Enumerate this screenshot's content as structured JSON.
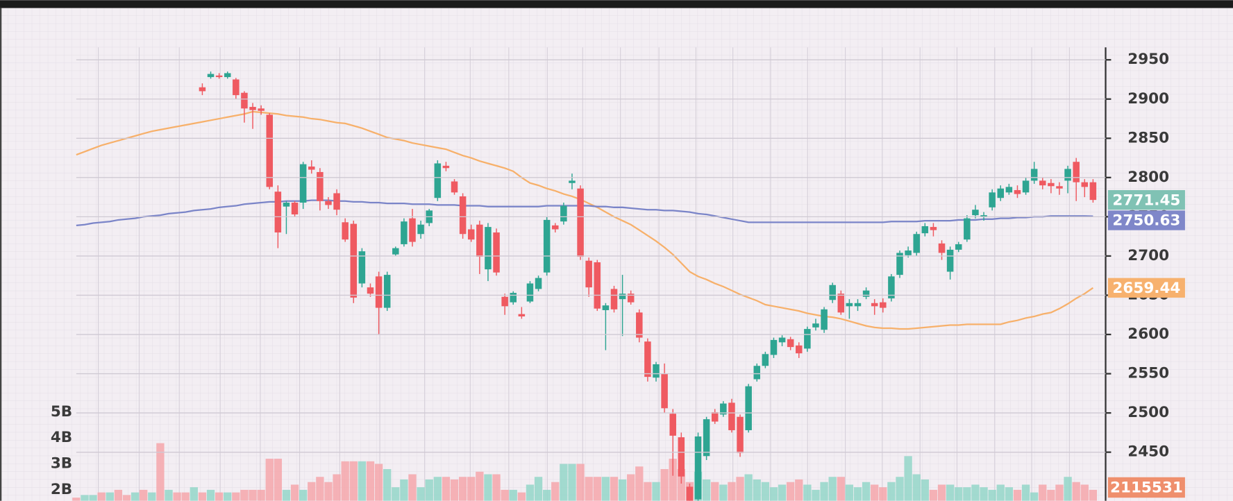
{
  "chart_data": {
    "type": "candlestick",
    "up_color": "#2ea592",
    "down_color": "#ef5a61",
    "ylim": [
      2388,
      3016
    ],
    "yticks": [
      2450,
      2500,
      2550,
      2600,
      2650,
      2700,
      2750,
      2800,
      2850,
      2900,
      2950
    ],
    "grid": true,
    "open": [
      null,
      null,
      null,
      null,
      null,
      null,
      null,
      null,
      null,
      null,
      null,
      null,
      null,
      null,
      null,
      2915,
      2928,
      2930,
      2928,
      2925,
      2908,
      2890,
      2888,
      2880,
      2782,
      2763,
      2768,
      2768,
      2814,
      2807,
      2770,
      2780,
      2743,
      2741,
      2665,
      2660,
      2674,
      2634,
      2702,
      2715,
      2748,
      2728,
      2742,
      2774,
      2815,
      2795,
      2776,
      2734,
      2740,
      2683,
      2730,
      2648,
      2641,
      2626,
      2642,
      2658,
      2679,
      2739,
      2744,
      2793,
      2786,
      2694,
      2692,
      2631,
      2658,
      2645,
      2652,
      2628,
      2591,
      2545,
      2550,
      2499,
      2469,
      2406,
      2390,
      2445,
      2501,
      2498,
      2513,
      2495,
      2478,
      2543,
      2560,
      2574,
      2590,
      2594,
      2586,
      2582,
      2609,
      2606,
      2644,
      2652,
      2636,
      2636,
      2648,
      2640,
      2641,
      2646,
      2676,
      2701,
      2704,
      2729,
      2737,
      2716,
      2680,
      2708,
      2721,
      2752,
      2750,
      2762,
      2774,
      2781,
      2784,
      2781,
      2796,
      2796,
      2793,
      2789,
      2796,
      2820,
      2794,
      2794
    ],
    "high": [
      null,
      null,
      null,
      null,
      null,
      null,
      null,
      null,
      null,
      null,
      null,
      null,
      null,
      null,
      null,
      2920,
      2935,
      2933,
      2935,
      2927,
      2910,
      2895,
      2892,
      2882,
      2790,
      2770,
      2770,
      2820,
      2822,
      2812,
      2775,
      2785,
      2748,
      2745,
      2710,
      2665,
      2680,
      2680,
      2712,
      2748,
      2760,
      2745,
      2760,
      2822,
      2820,
      2798,
      2780,
      2740,
      2745,
      2742,
      2735,
      2652,
      2655,
      2635,
      2668,
      2675,
      2750,
      2742,
      2768,
      2805,
      2790,
      2698,
      2695,
      2640,
      2662,
      2676,
      2656,
      2632,
      2595,
      2565,
      2563,
      2505,
      2475,
      2410,
      2475,
      2495,
      2505,
      2515,
      2518,
      2498,
      2537,
      2563,
      2578,
      2596,
      2599,
      2597,
      2590,
      2610,
      2620,
      2635,
      2666,
      2656,
      2645,
      2645,
      2660,
      2645,
      2646,
      2677,
      2707,
      2712,
      2731,
      2742,
      2742,
      2720,
      2712,
      2718,
      2752,
      2765,
      2756,
      2785,
      2790,
      2792,
      2790,
      2800,
      2820,
      2800,
      2798,
      2794,
      2815,
      2825,
      2798,
      2798
    ],
    "low": [
      null,
      null,
      null,
      null,
      null,
      null,
      null,
      null,
      null,
      null,
      null,
      null,
      null,
      null,
      null,
      2905,
      2926,
      2926,
      2926,
      2900,
      2870,
      2862,
      2880,
      2785,
      2710,
      2728,
      2750,
      2760,
      2805,
      2758,
      2760,
      2752,
      2718,
      2640,
      2660,
      2648,
      2600,
      2630,
      2700,
      2712,
      2712,
      2722,
      2738,
      2770,
      2808,
      2778,
      2722,
      2718,
      2677,
      2668,
      2675,
      2625,
      2638,
      2620,
      2640,
      2655,
      2675,
      2730,
      2740,
      2785,
      2695,
      2648,
      2630,
      2580,
      2628,
      2598,
      2638,
      2590,
      2540,
      2540,
      2500,
      2420,
      2410,
      2388,
      2388,
      2440,
      2486,
      2495,
      2475,
      2444,
      2475,
      2540,
      2557,
      2570,
      2585,
      2580,
      2570,
      2578,
      2605,
      2602,
      2640,
      2625,
      2620,
      2630,
      2645,
      2625,
      2628,
      2642,
      2672,
      2698,
      2700,
      2725,
      2725,
      2695,
      2670,
      2705,
      2718,
      2748,
      2745,
      2758,
      2770,
      2778,
      2774,
      2778,
      2792,
      2785,
      2780,
      2778,
      2780,
      2770,
      2775,
      2768
    ],
    "close": [
      null,
      null,
      null,
      null,
      null,
      null,
      null,
      null,
      null,
      null,
      null,
      null,
      null,
      null,
      null,
      2910,
      2932,
      2928,
      2933,
      2905,
      2888,
      2886,
      2885,
      2788,
      2730,
      2768,
      2753,
      2817,
      2810,
      2770,
      2765,
      2759,
      2721,
      2647,
      2706,
      2652,
      2634,
      2676,
      2710,
      2744,
      2718,
      2740,
      2758,
      2818,
      2812,
      2781,
      2728,
      2721,
      2699,
      2737,
      2679,
      2636,
      2653,
      2623,
      2665,
      2672,
      2746,
      2734,
      2764,
      2796,
      2699,
      2660,
      2633,
      2637,
      2632,
      2652,
      2641,
      2596,
      2546,
      2562,
      2506,
      2471,
      2419,
      2388,
      2470,
      2492,
      2489,
      2512,
      2478,
      2449,
      2534,
      2560,
      2575,
      2593,
      2596,
      2584,
      2576,
      2607,
      2614,
      2632,
      2663,
      2628,
      2640,
      2640,
      2656,
      2636,
      2634,
      2674,
      2704,
      2707,
      2728,
      2738,
      2733,
      2704,
      2708,
      2715,
      2748,
      2759,
      2752,
      2781,
      2786,
      2788,
      2779,
      2796,
      2811,
      2790,
      2789,
      2786,
      2811,
      2794,
      2788,
      2771.45
    ],
    "lines": [
      {
        "color": "#f7b06a",
        "values": [
          2829,
          2833,
          2837,
          2841,
          2844,
          2847,
          2850,
          2853,
          2856,
          2859,
          2861,
          2863,
          2865,
          2867,
          2869,
          2871,
          2873,
          2875,
          2877,
          2879,
          2881,
          2884,
          2883,
          2882,
          2881,
          2879,
          2878,
          2877,
          2875,
          2874,
          2872,
          2870,
          2869,
          2866,
          2863,
          2859,
          2855,
          2851,
          2849,
          2847,
          2844,
          2842,
          2840,
          2838,
          2836,
          2832,
          2828,
          2825,
          2821,
          2818,
          2815,
          2812,
          2808,
          2800,
          2793,
          2790,
          2786,
          2783,
          2779,
          2776,
          2772,
          2767,
          2762,
          2756,
          2750,
          2745,
          2740,
          2733,
          2726,
          2719,
          2711,
          2702,
          2691,
          2680,
          2674,
          2670,
          2665,
          2661,
          2656,
          2651,
          2647,
          2643,
          2638,
          2636,
          2634,
          2632,
          2630,
          2627,
          2625,
          2623,
          2622,
          2620,
          2617,
          2614,
          2611,
          2609,
          2608,
          2608,
          2607,
          2607,
          2608,
          2609,
          2610,
          2611,
          2612,
          2612,
          2613,
          2613,
          2613,
          2613,
          2613,
          2616,
          2618,
          2621,
          2623,
          2626,
          2628,
          2633,
          2639,
          2646,
          2652,
          2659.44
        ]
      },
      {
        "color": "#7a84c8",
        "values": [
          2739,
          2740,
          2742,
          2743,
          2744,
          2746,
          2747,
          2748,
          2750,
          2751,
          2752,
          2754,
          2755,
          2756,
          2758,
          2759,
          2760,
          2762,
          2763,
          2764,
          2766,
          2767,
          2768,
          2769,
          2769,
          2770,
          2770,
          2770,
          2771,
          2771,
          2771,
          2770,
          2770,
          2769,
          2769,
          2768,
          2768,
          2767,
          2767,
          2767,
          2766,
          2766,
          2766,
          2765,
          2765,
          2765,
          2764,
          2764,
          2764,
          2763,
          2763,
          2763,
          2763,
          2763,
          2763,
          2763,
          2764,
          2764,
          2764,
          2764,
          2764,
          2764,
          2763,
          2763,
          2762,
          2762,
          2761,
          2760,
          2759,
          2759,
          2758,
          2758,
          2757,
          2756,
          2754,
          2753,
          2751,
          2749,
          2747,
          2745,
          2743,
          2743,
          2743,
          2743,
          2743,
          2743,
          2743,
          2743,
          2743,
          2743,
          2743,
          2743,
          2743,
          2743,
          2743,
          2743,
          2743,
          2744,
          2744,
          2744,
          2744,
          2745,
          2745,
          2745,
          2745,
          2746,
          2746,
          2746,
          2747,
          2747,
          2748,
          2748,
          2749,
          2749,
          2750,
          2750,
          2751,
          2751,
          2751,
          2751,
          2751,
          2750.63
        ]
      }
    ],
    "volume": {
      "ylim": [
        1576000000,
        20580000000
      ],
      "yticks": [
        {
          "value": 2000000000,
          "label": "2B"
        },
        {
          "value": 3000000000,
          "label": "3B"
        },
        {
          "value": 4000000000,
          "label": "4B"
        },
        {
          "value": 5000000000,
          "label": "5B"
        }
      ],
      "values": [
        1700000000.0,
        1800000000.0,
        1800000000.0,
        1900000000.0,
        1900000000.0,
        2000000000.0,
        1800000000.0,
        1900000000.0,
        2000000000.0,
        1900000000.0,
        3800000000.0,
        2000000000.0,
        1900000000.0,
        1900000000.0,
        2100000000.0,
        1900000000.0,
        2000000000.0,
        1900000000.0,
        1900000000.0,
        1900000000.0,
        2000000000.0,
        2000000000.0,
        2000000000.0,
        3200000000.0,
        3200000000.0,
        2000000000.0,
        2200000000.0,
        2000000000.0,
        2300000000.0,
        2500000000.0,
        2300000000.0,
        2600000000.0,
        3100000000.0,
        3100000000.0,
        3100000000.0,
        3100000000.0,
        3000000000.0,
        2800000000.0,
        2100000000.0,
        2400000000.0,
        2600000000.0,
        2100000000.0,
        2400000000.0,
        2500000000.0,
        2500000000.0,
        2400000000.0,
        2500000000.0,
        2500000000.0,
        2700000000.0,
        2600000000.0,
        2600000000.0,
        2000000000.0,
        2000000000.0,
        1900000000.0,
        2200000000.0,
        2500000000.0,
        2000000000.0,
        2300000000.0,
        3000000000.0,
        3000000000.0,
        3000000000.0,
        2500000000.0,
        2500000000.0,
        2500000000.0,
        2500000000.0,
        2400000000.0,
        2600000000.0,
        2900000000.0,
        2300000000.0,
        2300000000.0,
        2800000000.0,
        3200000000.0,
        2800000000.0,
        2300000000.0,
        2700000000.0,
        2400000000.0,
        2300000000.0,
        2200000000.0,
        2300000000.0,
        2500000000.0,
        2600000000.0,
        2400000000.0,
        2300000000.0,
        2100000000.0,
        2200000000.0,
        2300000000.0,
        2400000000.0,
        2200000000.0,
        2000000000.0,
        2300000000.0,
        2500000000.0,
        2500000000.0,
        2200000000.0,
        2100000000.0,
        2300000000.0,
        2200000000.0,
        2100000000.0,
        2300000000.0,
        2500000000.0,
        3300000000.0,
        2600000000.0,
        2400000000.0,
        2000000000.0,
        2200000000.0,
        2200000000.0,
        2100000000.0,
        2100000000.0,
        2200000000.0,
        2100000000.0,
        2000000000.0,
        2200000000.0,
        2100000000.0,
        2000000000.0,
        2200000000.0,
        1900000000.0,
        2200000000.0,
        2000000000.0,
        2200000000.0,
        2500000000.0,
        2300000000.0,
        2200000000.0,
        2000000000.0
      ],
      "colors": [
        "#f4a6aa",
        "#93d6c8",
        "#93d6c8",
        "#f4a6aa",
        "#93d6c8",
        "#f4a6aa",
        "#f4a6aa",
        "#93d6c8",
        "#f4a6aa",
        "#93d6c8",
        "#f4a6aa",
        "#93d6c8",
        "#f4a6aa",
        "#f4a6aa",
        "#93d6c8",
        "#f4a6aa",
        "#93d6c8",
        "#f4a6aa",
        "#93d6c8",
        "#f4a6aa",
        "#f4a6aa",
        "#f4a6aa",
        "#f4a6aa",
        "#f4a6aa",
        "#f4a6aa",
        "#93d6c8",
        "#f4a6aa",
        "#93d6c8",
        "#f4a6aa",
        "#f4a6aa",
        "#f4a6aa",
        "#f4a6aa",
        "#f4a6aa",
        "#f4a6aa",
        "#93d6c8",
        "#f4a6aa",
        "#f4a6aa",
        "#93d6c8",
        "#93d6c8",
        "#93d6c8",
        "#f4a6aa",
        "#93d6c8",
        "#93d6c8",
        "#93d6c8",
        "#f4a6aa",
        "#f4a6aa",
        "#f4a6aa",
        "#f4a6aa",
        "#f4a6aa",
        "#93d6c8",
        "#f4a6aa",
        "#f4a6aa",
        "#93d6c8",
        "#f4a6aa",
        "#93d6c8",
        "#93d6c8",
        "#93d6c8",
        "#f4a6aa",
        "#93d6c8",
        "#93d6c8",
        "#f4a6aa",
        "#f4a6aa",
        "#f4a6aa",
        "#93d6c8",
        "#f4a6aa",
        "#93d6c8",
        "#f4a6aa",
        "#f4a6aa",
        "#f4a6aa",
        "#93d6c8",
        "#f4a6aa",
        "#f4a6aa",
        "#f4a6aa",
        "#f4a6aa",
        "#93d6c8",
        "#93d6c8",
        "#f4a6aa",
        "#93d6c8",
        "#f4a6aa",
        "#f4a6aa",
        "#93d6c8",
        "#93d6c8",
        "#93d6c8",
        "#93d6c8",
        "#93d6c8",
        "#f4a6aa",
        "#f4a6aa",
        "#93d6c8",
        "#93d6c8",
        "#93d6c8",
        "#93d6c8",
        "#f4a6aa",
        "#93d6c8",
        "#93d6c8",
        "#93d6c8",
        "#f4a6aa",
        "#f4a6aa",
        "#93d6c8",
        "#93d6c8",
        "#93d6c8",
        "#93d6c8",
        "#93d6c8",
        "#f4a6aa",
        "#f4a6aa",
        "#93d6c8",
        "#93d6c8",
        "#93d6c8",
        "#93d6c8",
        "#93d6c8",
        "#93d6c8",
        "#93d6c8",
        "#93d6c8",
        "#f4a6aa",
        "#93d6c8",
        "#93d6c8",
        "#f4a6aa",
        "#f4a6aa",
        "#f4a6aa",
        "#93d6c8",
        "#f4a6aa",
        "#f4a6aa",
        "#f4a6aa"
      ]
    },
    "volume_label": "2115531"
  }
}
